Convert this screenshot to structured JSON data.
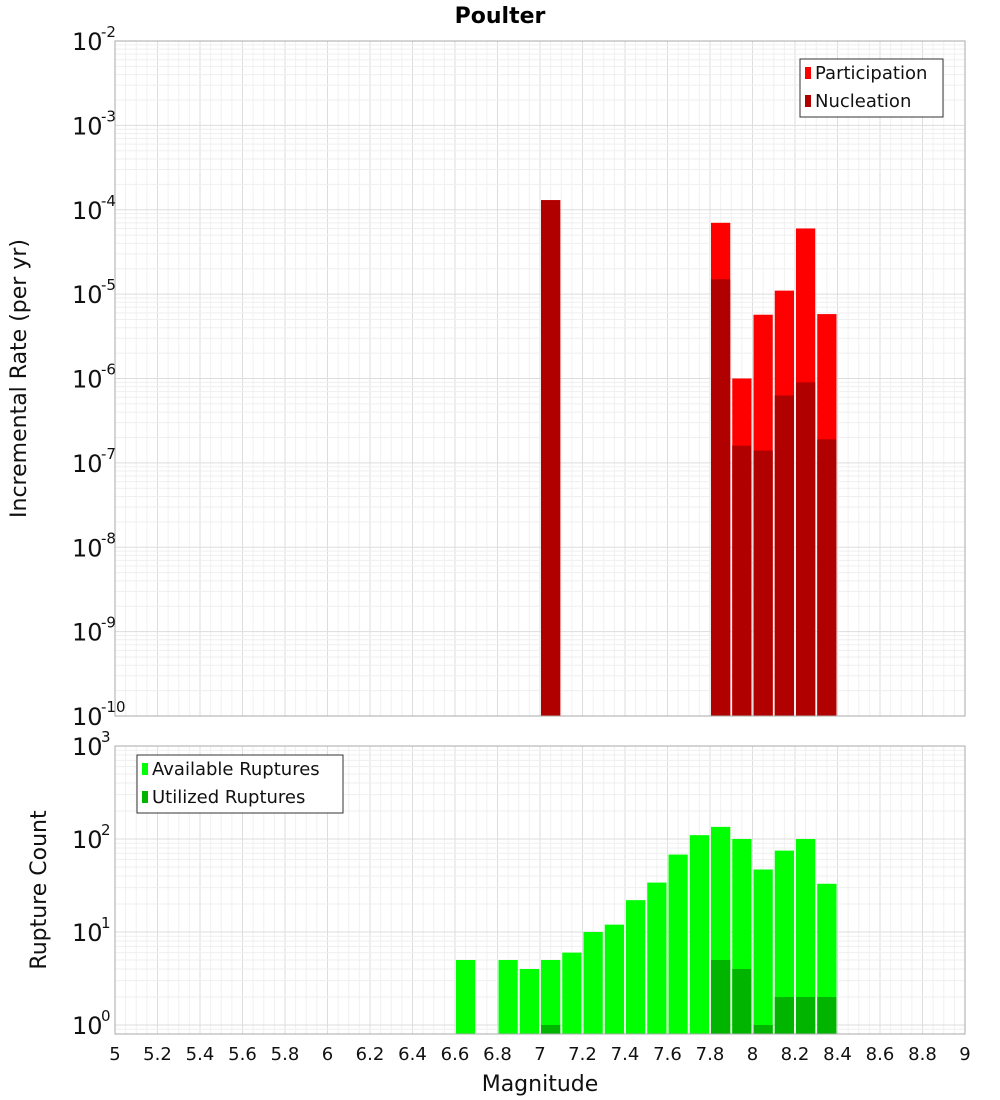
{
  "chart_data": {
    "title": "Poulter",
    "xlabel": "Magnitude",
    "xlim": [
      5,
      9
    ],
    "xticks": [
      "5",
      "5.2",
      "5.4",
      "5.6",
      "5.8",
      "6",
      "6.2",
      "6.4",
      "6.6",
      "6.8",
      "7",
      "7.2",
      "7.4",
      "7.6",
      "7.8",
      "8",
      "8.2",
      "8.4",
      "8.6",
      "8.8",
      "9"
    ],
    "bin_width": 0.1,
    "grid": true,
    "panels": [
      {
        "type": "bar",
        "ylabel": "Incremental Rate (per yr)",
        "yscale": "log",
        "ylim": [
          1e-10,
          0.01
        ],
        "yticks": [
          {
            "base": "10",
            "exp": "-10"
          },
          {
            "base": "10",
            "exp": "-9"
          },
          {
            "base": "10",
            "exp": "-8"
          },
          {
            "base": "10",
            "exp": "-7"
          },
          {
            "base": "10",
            "exp": "-6"
          },
          {
            "base": "10",
            "exp": "-5"
          },
          {
            "base": "10",
            "exp": "-4"
          },
          {
            "base": "10",
            "exp": "-3"
          },
          {
            "base": "10",
            "exp": "-2"
          }
        ],
        "legend_position": "top-right",
        "series": [
          {
            "name": "Participation",
            "color": "#ff0000",
            "x": [
              7.05,
              7.85,
              7.95,
              8.05,
              8.15,
              8.25,
              8.35
            ],
            "values": [
              0.00013,
              7e-05,
              1e-06,
              5.7e-06,
              1.1e-05,
              6e-05,
              5.8e-06
            ]
          },
          {
            "name": "Nucleation",
            "color": "#b00000",
            "x": [
              7.05,
              7.85,
              7.95,
              8.05,
              8.15,
              8.25,
              8.35
            ],
            "values": [
              0.00013,
              1.5e-05,
              1.6e-07,
              1.4e-07,
              6.3e-07,
              9e-07,
              1.9e-07
            ]
          }
        ]
      },
      {
        "type": "bar",
        "ylabel": "Rupture Count",
        "yscale": "log",
        "ylim": [
          0.8,
          1000
        ],
        "yticks": [
          {
            "base": "10",
            "exp": "0"
          },
          {
            "base": "10",
            "exp": "1"
          },
          {
            "base": "10",
            "exp": "2"
          },
          {
            "base": "10",
            "exp": "3"
          }
        ],
        "legend_position": "top-left",
        "series": [
          {
            "name": "Available Ruptures",
            "color": "#00ff00",
            "x": [
              6.65,
              6.85,
              6.95,
              7.05,
              7.15,
              7.25,
              7.35,
              7.45,
              7.55,
              7.65,
              7.75,
              7.85,
              7.95,
              8.05,
              8.15,
              8.25,
              8.35
            ],
            "values": [
              5,
              5,
              4,
              5,
              6,
              10,
              12,
              22,
              34,
              68,
              110,
              135,
              100,
              47,
              75,
              100,
              33
            ]
          },
          {
            "name": "Utilized Ruptures",
            "color": "#00b400",
            "x": [
              7.05,
              7.85,
              7.95,
              8.05,
              8.15,
              8.25,
              8.35
            ],
            "values": [
              1,
              5,
              4,
              1,
              2,
              2,
              2
            ]
          }
        ]
      }
    ]
  }
}
